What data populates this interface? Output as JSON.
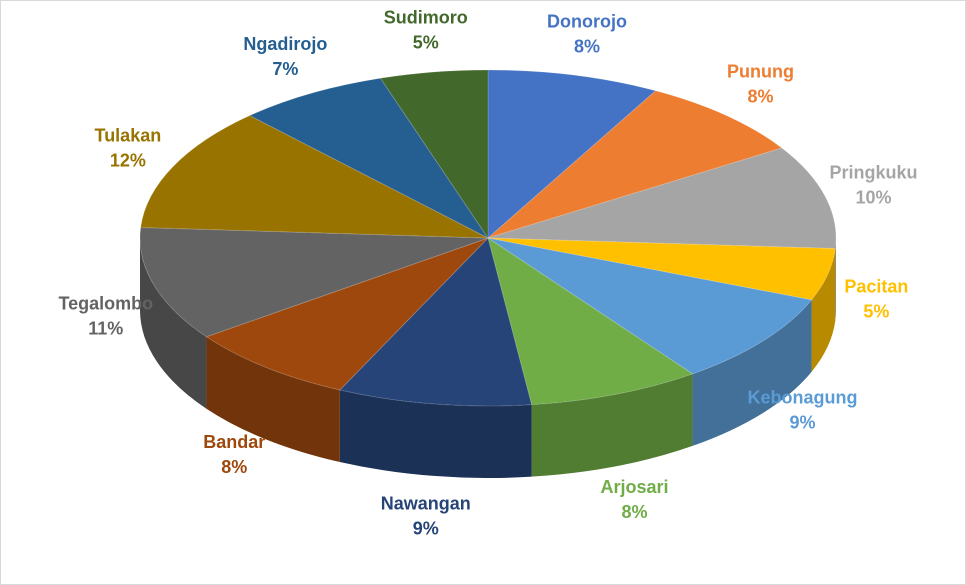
{
  "chart_data": {
    "type": "pie",
    "categories": [
      "Donorojo",
      "Punung",
      "Pringkuku",
      "Pacitan",
      "Kebonagung",
      "Arjosari",
      "Nawangan",
      "Bandar",
      "Tegalombo",
      "Tulakan",
      "Ngadirojo",
      "Sudimoro"
    ],
    "values": [
      8,
      8,
      10,
      5,
      9,
      8,
      9,
      8,
      11,
      12,
      7,
      5
    ],
    "value_labels": [
      "8%",
      "8%",
      "10%",
      "5%",
      "9%",
      "8%",
      "9%",
      "8%",
      "11%",
      "12%",
      "7%",
      "5%"
    ],
    "colors": [
      "#4472c4",
      "#ed7d31",
      "#a5a5a5",
      "#ffc000",
      "#5b9bd5",
      "#70ad47",
      "#264478",
      "#9e480e",
      "#636363",
      "#997300",
      "#255e91",
      "#43682b"
    ]
  }
}
